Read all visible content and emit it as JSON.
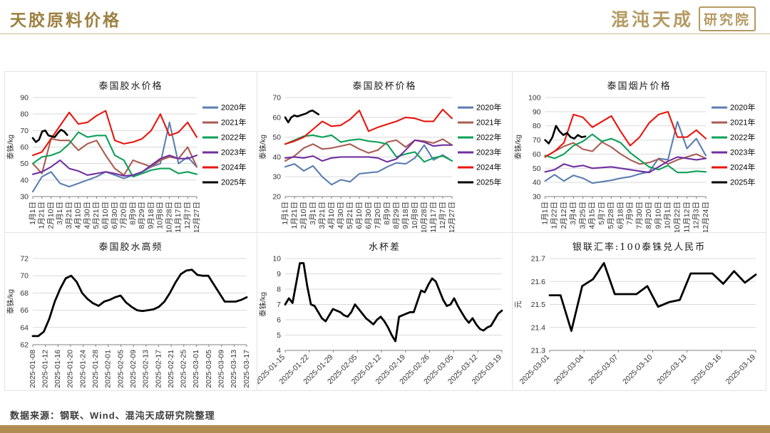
{
  "header": {
    "title": "天胶原料价格",
    "logo_text": "混沌天成",
    "logo_badge": "研究院"
  },
  "footer": {
    "source": "数据来源：钢联、Wind、混沌天成研究院整理"
  },
  "colors": {
    "accent_gold": "#9c8040",
    "logo_gold": "#b49a62",
    "bottom_bar": "#b08c52",
    "grid_line": "#d9d9d9",
    "series_2020": "#5b7fb0",
    "series_2021": "#a95c52",
    "series_2022": "#0ca057",
    "series_2023": "#7030a0",
    "series_2024": "#e8150d",
    "series_2025": "#000000"
  },
  "chart_data": [
    {
      "type": "line",
      "title": "泰国胶水价格",
      "ylabel": "泰铢/kg",
      "ylim": [
        30,
        90
      ],
      "yticks": [
        30,
        40,
        50,
        60,
        70,
        80,
        90
      ],
      "xtick_rotation": 90,
      "legend": true,
      "grid": true,
      "xticks": [
        "1月1日",
        "1月21日",
        "2月10日",
        "3月1日",
        "3月21日",
        "4月10日",
        "4月30日",
        "5月21日",
        "6月10日",
        "6月30日",
        "7月20日",
        "8月9日",
        "8月29日",
        "9月18日",
        "10月8日",
        "10月28日",
        "11月17日",
        "12月7日",
        "12月27日"
      ],
      "series": [
        {
          "name": "2020年",
          "color": "#5b7fb0",
          "values": [
            33,
            42,
            45,
            38,
            36,
            38,
            40,
            42,
            45,
            43,
            41,
            43,
            45,
            48,
            50,
            75,
            50,
            54,
            48
          ]
        },
        {
          "name": "2021年",
          "color": "#a95c52",
          "values": [
            50,
            44,
            65,
            64,
            64,
            58,
            62,
            64,
            55,
            47,
            43,
            52,
            50,
            48,
            52,
            54,
            53,
            60,
            48
          ]
        },
        {
          "name": "2022年",
          "color": "#0ca057",
          "values": [
            50,
            54,
            55,
            57,
            62,
            69,
            66,
            67,
            67,
            55,
            52,
            42,
            44,
            46,
            47,
            47,
            44,
            45,
            43.5
          ]
        },
        {
          "name": "2023年",
          "color": "#7030a0",
          "values": [
            43.5,
            45,
            48,
            52,
            47,
            45.5,
            43,
            44,
            45,
            44,
            42.5,
            43,
            45,
            49,
            53,
            55,
            53,
            53,
            55
          ]
        },
        {
          "name": "2024年",
          "color": "#e8150d",
          "values": [
            55,
            57,
            65,
            73,
            81,
            74,
            75,
            79,
            82,
            64,
            62,
            63,
            65,
            70,
            80,
            67,
            69,
            75,
            66
          ]
        },
        {
          "name": "2025年",
          "color": "#000000",
          "width": 2.6,
          "x_end": 0.21,
          "values": [
            65.5,
            63,
            64.5,
            69.5,
            70,
            67,
            66.5,
            66,
            68.5,
            70.5,
            69.5,
            67.3
          ]
        }
      ]
    },
    {
      "type": "line",
      "title": "泰国胶杯价格",
      "ylabel": "泰铢/kg",
      "ylim": [
        20,
        70
      ],
      "yticks": [
        20,
        30,
        40,
        50,
        60,
        70
      ],
      "xtick_rotation": 90,
      "legend": true,
      "grid": true,
      "xticks": [
        "1月1日",
        "1月21日",
        "2月10日",
        "3月1日",
        "3月21日",
        "4月10日",
        "4月30日",
        "5月21日",
        "6月10日",
        "6月30日",
        "7月20日",
        "8月9日",
        "8月29日",
        "9月18日",
        "10月8日",
        "10月28日",
        "11月17日",
        "12月7日",
        "12月27日"
      ],
      "series": [
        {
          "name": "2020年",
          "color": "#5b7fb0",
          "values": [
            35,
            36.5,
            33,
            35.5,
            30,
            26,
            28.5,
            27.5,
            31.5,
            32,
            32.5,
            35,
            37,
            36.5,
            39.5,
            46,
            38.5,
            41,
            38
          ]
        },
        {
          "name": "2021年",
          "color": "#a95c52",
          "values": [
            38,
            40.5,
            44.5,
            46.5,
            44,
            44.5,
            45.5,
            46.5,
            44,
            42,
            43.5,
            47.5,
            48.5,
            45,
            48.5,
            48,
            47,
            49,
            46
          ]
        },
        {
          "name": "2022年",
          "color": "#0ca057",
          "values": [
            46.5,
            48.5,
            50.5,
            51,
            50,
            51,
            47.5,
            48.5,
            49,
            48,
            47.5,
            46.5,
            40,
            41.5,
            42.5,
            37.5,
            39.5,
            40.5,
            38
          ]
        },
        {
          "name": "2023年",
          "color": "#7030a0",
          "values": [
            39.5,
            40,
            39.5,
            40.5,
            38,
            39.5,
            40,
            40,
            40,
            40,
            39.5,
            37.5,
            39,
            43.5,
            48.5,
            47.5,
            45.5,
            46,
            46
          ]
        },
        {
          "name": "2024年",
          "color": "#e8150d",
          "values": [
            46.5,
            48,
            50,
            54,
            58,
            55.5,
            56,
            59,
            63.5,
            53,
            55,
            56.5,
            58,
            60,
            59.5,
            58,
            58,
            64,
            59.5
          ]
        },
        {
          "name": "2025年",
          "color": "#000000",
          "width": 2.6,
          "x_end": 0.2,
          "values": [
            60,
            57.5,
            60,
            61,
            60.5,
            61,
            61.5,
            62,
            63,
            63.5,
            62.5,
            61.5
          ]
        }
      ]
    },
    {
      "type": "line",
      "title": "泰国烟片价格",
      "ylabel": "泰铢/kg",
      "ylim": [
        30,
        100
      ],
      "yticks": [
        30,
        40,
        50,
        60,
        70,
        80,
        90,
        100
      ],
      "xtick_rotation": 90,
      "legend": true,
      "grid": true,
      "xticks": [
        "1月1日",
        "1月22日",
        "2月12日",
        "3月4日",
        "3月25日",
        "4月15日",
        "5月7日",
        "5月28日",
        "6月18日",
        "7月9日",
        "7月30日",
        "8月20日",
        "9月10日",
        "10月1日",
        "10月22日",
        "11月12日",
        "12月3日",
        "12月24日"
      ],
      "series": [
        {
          "name": "2020年",
          "color": "#5b7fb0",
          "values": [
            41,
            45.5,
            41,
            45,
            43,
            39.5,
            40.5,
            41.5,
            43,
            44,
            46,
            47.5,
            57,
            56,
            83,
            64,
            71,
            59
          ]
        },
        {
          "name": "2021年",
          "color": "#a95c52",
          "values": [
            58,
            62,
            65.5,
            68,
            63.5,
            62,
            68.5,
            65,
            60,
            56,
            53,
            54,
            56.5,
            53,
            56,
            58,
            60,
            57
          ]
        },
        {
          "name": "2022年",
          "color": "#0ca057",
          "values": [
            59,
            57,
            60,
            66,
            69,
            74,
            69,
            71,
            68,
            61,
            56,
            51,
            49,
            52,
            47,
            47,
            48,
            47.5
          ]
        },
        {
          "name": "2023年",
          "color": "#7030a0",
          "values": [
            47.5,
            49,
            53,
            51,
            52,
            50,
            50.5,
            51,
            50,
            49,
            48,
            47,
            51,
            55,
            58,
            57,
            56,
            57
          ]
        },
        {
          "name": "2024年",
          "color": "#e8150d",
          "values": [
            58,
            62,
            68,
            88,
            86,
            79,
            83,
            87,
            76,
            66,
            72,
            82,
            88,
            90,
            72,
            72,
            77,
            71
          ]
        },
        {
          "name": "2025年",
          "color": "#000000",
          "width": 2.6,
          "x_end": 0.25,
          "values": [
            70,
            67.5,
            72,
            80,
            76,
            73.5,
            75,
            72,
            71,
            73.5,
            72,
            72.5
          ]
        }
      ]
    },
    {
      "type": "line",
      "title": "泰国胶水高频",
      "ylabel": "泰铢/kg",
      "ylim": [
        62,
        72
      ],
      "yticks": [
        62,
        64,
        66,
        68,
        70,
        72
      ],
      "xtick_rotation": 90,
      "legend": false,
      "grid": true,
      "xticks": [
        "2025-01-08",
        "2025-01-12",
        "2025-01-16",
        "2025-01-20",
        "2025-01-24",
        "2025-01-28",
        "2025-02-01",
        "2025-02-05",
        "2025-02-09",
        "2025-02-13",
        "2025-02-17",
        "2025-02-21",
        "2025-02-25",
        "2025-03-01",
        "2025-03-05",
        "2025-03-09",
        "2025-03-13",
        "2025-03-17"
      ],
      "series": [
        {
          "name": "泰国胶水高频",
          "color": "#000000",
          "width": 2.8,
          "values": [
            63,
            63,
            63.5,
            65,
            67,
            68.5,
            69.7,
            70,
            69.3,
            68,
            67.3,
            66.8,
            66.5,
            67,
            67.2,
            67.5,
            67.7,
            66.9,
            66.4,
            66,
            65.9,
            66,
            66.1,
            66.4,
            67,
            68,
            69.2,
            70.2,
            70.6,
            70.7,
            70.1,
            70,
            70,
            69,
            68,
            67,
            67,
            67,
            67.2,
            67.5
          ]
        }
      ]
    },
    {
      "type": "line",
      "title": "水杯差",
      "ylabel": "泰铢/kg",
      "ylim": [
        4,
        10
      ],
      "yticks": [
        4,
        5,
        6,
        7,
        8,
        9,
        10
      ],
      "xtick_rotation": 45,
      "legend": false,
      "grid": true,
      "xticks": [
        "2025-01-15",
        "2025-01-22",
        "2025-01-29",
        "2025-02-05",
        "2025-02-12",
        "2025-02-19",
        "2025-02-26",
        "2025-03-05",
        "2025-03-12",
        "2025-03-19"
      ],
      "series": [
        {
          "name": "水杯差",
          "color": "#000000",
          "width": 2.8,
          "values": [
            7.0,
            7.4,
            7.1,
            8.4,
            9.7,
            9.7,
            8.2,
            7.0,
            6.9,
            6.5,
            6.1,
            5.9,
            6.3,
            6.7,
            6.6,
            6.5,
            6.3,
            6.2,
            6.5,
            7.0,
            6.7,
            6.4,
            6.1,
            5.9,
            5.7,
            6.0,
            6.2,
            5.9,
            5.5,
            5.0,
            4.6,
            6.2,
            6.3,
            6.4,
            6.5,
            6.5,
            7.2,
            7.9,
            7.8,
            8.3,
            8.7,
            8.5,
            7.9,
            7.3,
            6.9,
            7.0,
            7.4,
            6.9,
            6.5,
            6.1,
            5.8,
            6.1,
            5.7,
            5.4,
            5.3,
            5.5,
            5.6,
            6.0,
            6.4,
            6.6
          ]
        }
      ]
    },
    {
      "type": "line",
      "title": "银联汇率:100泰铢兑人民币",
      "ylabel": "元",
      "ylim": [
        21.3,
        21.7
      ],
      "yticks": [
        21.3,
        21.4,
        21.5,
        21.6,
        21.7
      ],
      "xtick_rotation": 45,
      "legend": false,
      "grid": true,
      "xticks": [
        "2025-03-01",
        "2025-03-04",
        "2025-03-07",
        "2025-03-10",
        "2025-03-13",
        "2025-03-16",
        "2025-03-19"
      ],
      "series": [
        {
          "name": "银联汇率",
          "color": "#000000",
          "width": 2.8,
          "values": [
            21.54,
            21.54,
            21.385,
            21.58,
            21.61,
            21.68,
            21.545,
            21.545,
            21.545,
            21.58,
            21.49,
            21.51,
            21.52,
            21.635,
            21.635,
            21.635,
            21.59,
            21.645,
            21.595,
            21.63
          ]
        }
      ]
    }
  ]
}
